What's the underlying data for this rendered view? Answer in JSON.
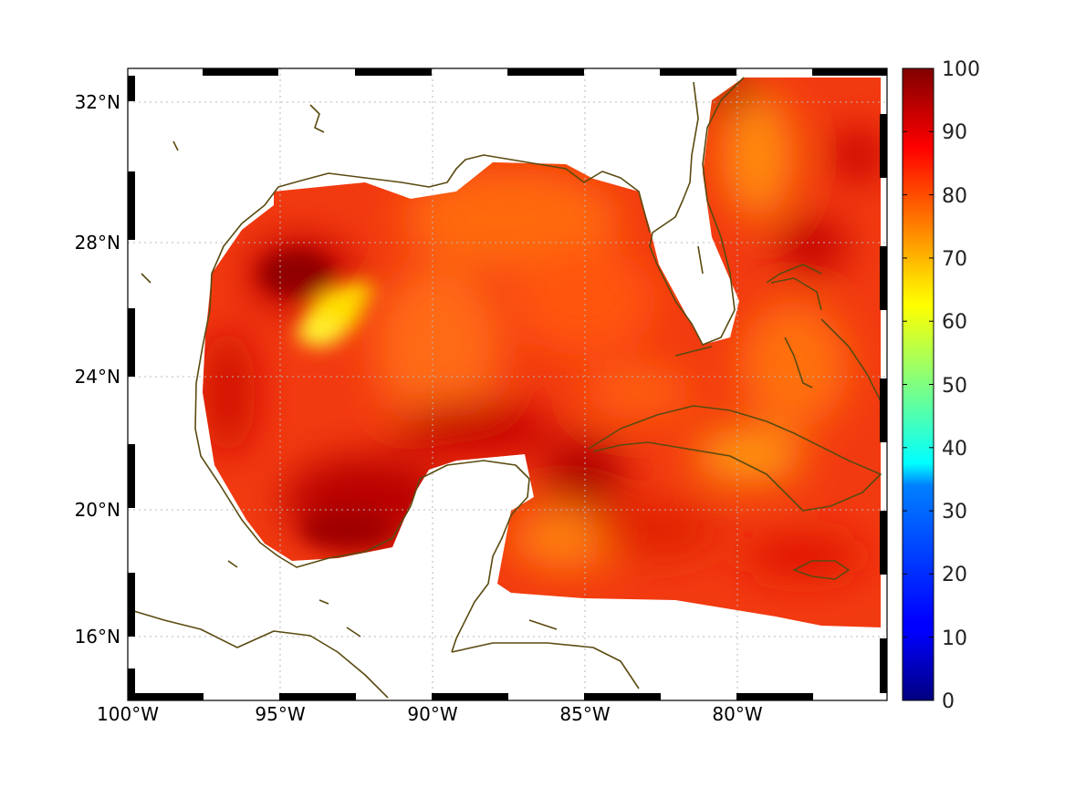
{
  "map": {
    "lon_range": [
      -100,
      -75
    ],
    "lat_range": [
      14.2,
      32.9
    ],
    "x_tick_labels": [
      "100°W",
      "95°W",
      "90°W",
      "85°W",
      "80°W"
    ],
    "x_tick_values": [
      -100,
      -95,
      -90,
      -85,
      -80
    ],
    "y_tick_labels": [
      "16°N",
      "20°N",
      "24°N",
      "28°N",
      "32°N"
    ],
    "y_tick_values": [
      16,
      20,
      24,
      28,
      32
    ],
    "grid": true,
    "coastline_color": "#5a4a10",
    "land_color": "#ffffff"
  },
  "colorbar": {
    "range": [
      0,
      100
    ],
    "tick_labels": [
      "0",
      "10",
      "20",
      "30",
      "40",
      "50",
      "60",
      "70",
      "80",
      "90",
      "100"
    ],
    "colormap": "jet"
  }
}
